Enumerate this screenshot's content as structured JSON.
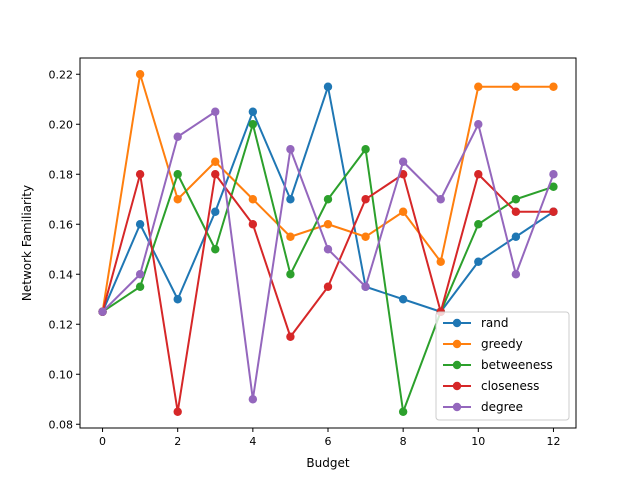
{
  "chart_data": {
    "type": "line",
    "title": "",
    "xlabel": "Budget",
    "ylabel": "Network Familiarity",
    "xlim": [
      -0.6,
      12.6
    ],
    "ylim": [
      0.0785,
      0.2265
    ],
    "x": [
      0,
      1,
      2,
      3,
      4,
      5,
      6,
      7,
      8,
      9,
      10,
      11,
      12
    ],
    "xticks": [
      0,
      2,
      4,
      6,
      8,
      10,
      12
    ],
    "xtick_labels": [
      "0",
      "2",
      "4",
      "6",
      "8",
      "10",
      "12"
    ],
    "yticks": [
      0.08,
      0.1,
      0.12,
      0.14,
      0.16,
      0.18,
      0.2,
      0.22
    ],
    "ytick_labels": [
      "0.08",
      "0.10",
      "0.12",
      "0.14",
      "0.16",
      "0.18",
      "0.20",
      "0.22"
    ],
    "grid": false,
    "legend_position": "lower-right",
    "series": [
      {
        "name": "rand",
        "color": "#1f77b4",
        "values": [
          0.125,
          0.16,
          0.13,
          0.165,
          0.205,
          0.17,
          0.215,
          0.135,
          0.13,
          0.125,
          0.145,
          0.155,
          0.165
        ]
      },
      {
        "name": "greedy",
        "color": "#ff7f0e",
        "values": [
          0.125,
          0.22,
          0.17,
          0.185,
          0.17,
          0.155,
          0.16,
          0.155,
          0.165,
          0.145,
          0.215,
          0.215,
          0.215
        ]
      },
      {
        "name": "betweeness",
        "color": "#2ca02c",
        "values": [
          0.125,
          0.135,
          0.18,
          0.15,
          0.2,
          0.14,
          0.17,
          0.19,
          0.085,
          0.125,
          0.16,
          0.17,
          0.175
        ]
      },
      {
        "name": "closeness",
        "color": "#d62728",
        "values": [
          0.125,
          0.18,
          0.085,
          0.18,
          0.16,
          0.115,
          0.135,
          0.17,
          0.18,
          0.125,
          0.18,
          0.165,
          0.165
        ]
      },
      {
        "name": "degree",
        "color": "#9467bd",
        "values": [
          0.125,
          0.14,
          0.195,
          0.205,
          0.09,
          0.19,
          0.15,
          0.135,
          0.185,
          0.17,
          0.2,
          0.14,
          0.18
        ]
      }
    ]
  }
}
